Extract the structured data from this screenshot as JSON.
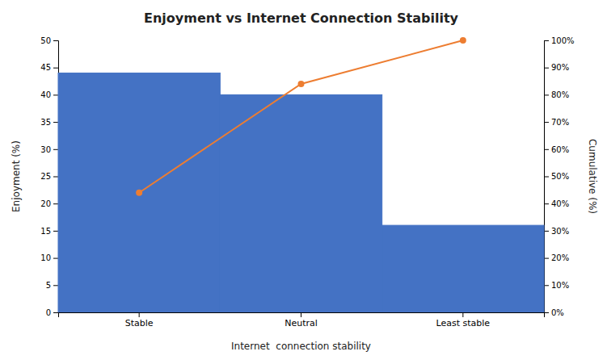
{
  "chart_data": {
    "type": "bar",
    "title": "Enjoyment vs Internet Connection Stability",
    "categories": [
      "Stable",
      "Neutral",
      "Least stable"
    ],
    "xlabel": "Internet  connection stability",
    "ylabel": "Enjoyment (%)",
    "y2label": "Cumulative (%)",
    "ylim": [
      0,
      50
    ],
    "yticks": [
      0,
      5,
      10,
      15,
      20,
      25,
      30,
      35,
      40,
      45,
      50
    ],
    "y2lim": [
      0,
      100
    ],
    "y2ticks": [
      {
        "value": 0,
        "label": "0%"
      },
      {
        "value": 10,
        "label": "10%"
      },
      {
        "value": 20,
        "label": "20%"
      },
      {
        "value": 30,
        "label": "30%"
      },
      {
        "value": 40,
        "label": "40%"
      },
      {
        "value": 50,
        "label": "50%"
      },
      {
        "value": 60,
        "label": "60%"
      },
      {
        "value": 70,
        "label": "70%"
      },
      {
        "value": 80,
        "label": "80%"
      },
      {
        "value": 90,
        "label": "90%"
      },
      {
        "value": 100,
        "label": "100%"
      }
    ],
    "grid": false,
    "series": [
      {
        "type": "bar",
        "color": "#4472C4",
        "values": [
          44,
          40,
          16
        ]
      },
      {
        "type": "line",
        "axis": "y2",
        "color": "#ED7D31",
        "marker": "circle",
        "values": [
          44,
          84,
          100
        ]
      }
    ]
  }
}
